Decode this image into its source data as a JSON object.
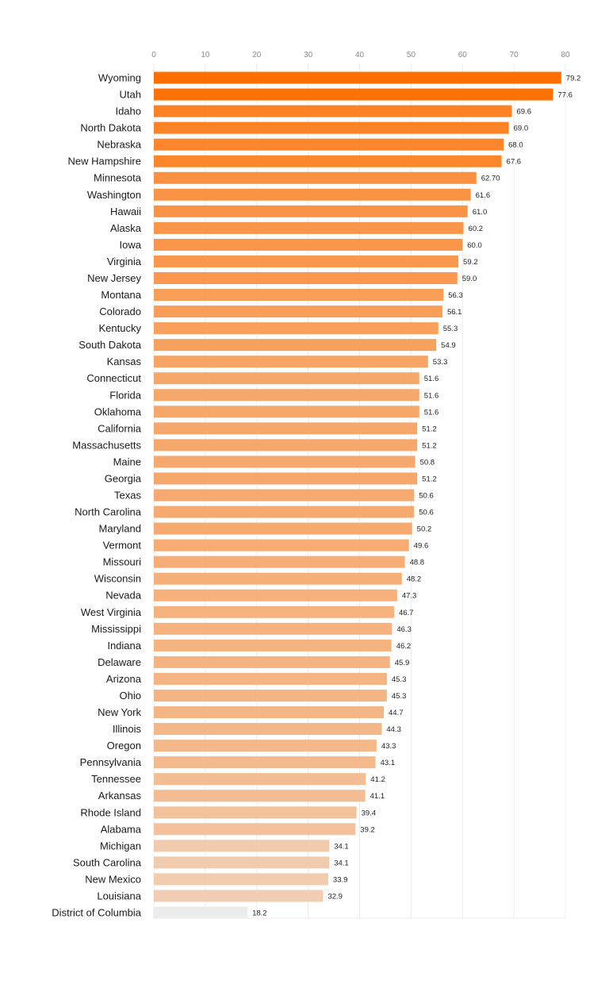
{
  "chart_data": {
    "type": "bar",
    "orientation": "horizontal",
    "title": "",
    "xlabel": "",
    "ylabel": "",
    "xlim": [
      0,
      80
    ],
    "x_ticks": [
      "0",
      "10",
      "20",
      "30",
      "40",
      "50",
      "60",
      "70",
      "80"
    ],
    "grid": true,
    "colors": {
      "high": "#ff6f00",
      "low": "#ececec"
    },
    "categories": [
      "Wyoming",
      "Utah",
      "Idaho",
      "North Dakota",
      "Nebraska",
      "New Hampshire",
      "Minnesota",
      "Washington",
      "Hawaii",
      "Alaska",
      "Iowa",
      "Virginia",
      "New Jersey",
      "Montana",
      "Colorado",
      "Kentucky",
      "South Dakota",
      "Kansas",
      "Connecticut",
      "Florida",
      "Oklahoma",
      "California",
      "Massachusetts",
      "Maine",
      "Georgia",
      "Texas",
      "North Carolina",
      "Maryland",
      "Vermont",
      "Missouri",
      "Wisconsin",
      "Nevada",
      "West Virginia",
      "Mississippi",
      "Indiana",
      "Delaware",
      "Arizona",
      "Ohio",
      "New York",
      "Illinois",
      "Oregon",
      "Pennsylvania",
      "Tennessee",
      "Arkansas",
      "Rhode Island",
      "Alabama",
      "Michigan",
      "South Carolina",
      "New Mexico",
      "Louisiana",
      "District of Columbia"
    ],
    "values": [
      79.2,
      77.6,
      69.6,
      69.0,
      68.0,
      67.6,
      62.7,
      61.6,
      61.0,
      60.2,
      60.0,
      59.2,
      59.0,
      56.3,
      56.1,
      55.3,
      54.9,
      53.3,
      51.6,
      51.6,
      51.6,
      51.2,
      51.2,
      50.8,
      51.2,
      50.6,
      50.6,
      50.2,
      49.6,
      48.8,
      48.2,
      47.3,
      46.7,
      46.3,
      46.2,
      45.9,
      45.3,
      45.3,
      44.7,
      44.3,
      43.3,
      43.1,
      41.2,
      41.1,
      39.4,
      39.2,
      34.1,
      34.1,
      33.9,
      32.9,
      18.2
    ],
    "value_labels": [
      "79.2",
      "77.6",
      "69.6",
      "69.0",
      "68.0",
      "67.6",
      "62.70",
      "61.6",
      "61.0",
      "60.2",
      "60.0",
      "59.2",
      "59.0",
      "56.3",
      "56.1",
      "55.3",
      "54.9",
      "53.3",
      "51.6",
      "51.6",
      "51.6",
      "51.2",
      "51.2",
      "50.8",
      "51.2",
      "50.6",
      "50.6",
      "50.2",
      "49.6",
      "48.8",
      "48.2",
      "47.3",
      "46.7",
      "46.3",
      "46.2",
      "45.9",
      "45.3",
      "45.3",
      "44.7",
      "44.3",
      "43.3",
      "43.1",
      "41.2",
      "41.1",
      "39.4",
      "39.2",
      "34.1",
      "34.1",
      "33.9",
      "32.9",
      "18.2"
    ]
  }
}
